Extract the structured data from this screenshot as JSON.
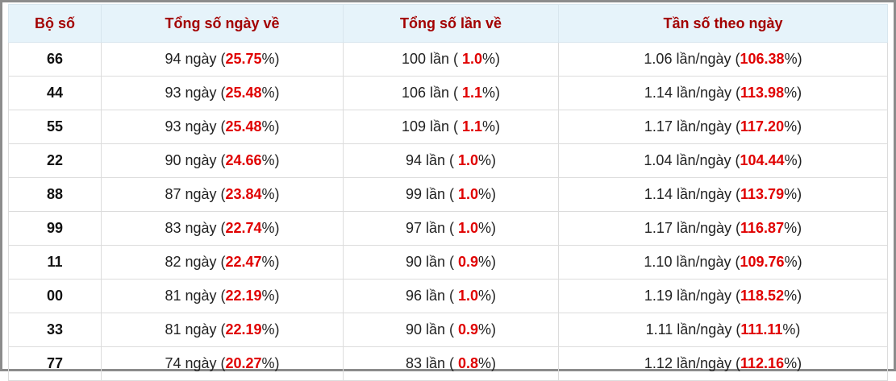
{
  "table": {
    "header": [
      "Bộ số",
      "Tổng số ngày về",
      "Tổng số lần về",
      "Tần số theo ngày"
    ],
    "rows": [
      [
        "66",
        [
          "94 ngày (",
          "25.75",
          "%)"
        ],
        [
          "100 lần ( ",
          "1.0",
          "%)"
        ],
        [
          "1.06 lần/ngày (",
          "106.38",
          "%)"
        ]
      ],
      [
        "44",
        [
          "93 ngày (",
          "25.48",
          "%)"
        ],
        [
          "106 lần ( ",
          "1.1",
          "%)"
        ],
        [
          "1.14 lần/ngày (",
          "113.98",
          "%)"
        ]
      ],
      [
        "55",
        [
          "93 ngày (",
          "25.48",
          "%)"
        ],
        [
          "109 lần ( ",
          "1.1",
          "%)"
        ],
        [
          "1.17 lần/ngày (",
          "117.20",
          "%)"
        ]
      ],
      [
        "22",
        [
          "90 ngày (",
          "24.66",
          "%)"
        ],
        [
          "94 lần ( ",
          "1.0",
          "%)"
        ],
        [
          "1.04 lần/ngày (",
          "104.44",
          "%)"
        ]
      ],
      [
        "88",
        [
          "87 ngày (",
          "23.84",
          "%)"
        ],
        [
          "99 lần ( ",
          "1.0",
          "%)"
        ],
        [
          "1.14 lần/ngày (",
          "113.79",
          "%)"
        ]
      ],
      [
        "99",
        [
          "83 ngày (",
          "22.74",
          "%)"
        ],
        [
          "97 lần ( ",
          "1.0",
          "%)"
        ],
        [
          "1.17 lần/ngày (",
          "116.87",
          "%)"
        ]
      ],
      [
        "11",
        [
          "82 ngày (",
          "22.47",
          "%)"
        ],
        [
          "90 lần ( ",
          "0.9",
          "%)"
        ],
        [
          "1.10 lần/ngày (",
          "109.76",
          "%)"
        ]
      ],
      [
        "00",
        [
          "81 ngày (",
          "22.19",
          "%)"
        ],
        [
          "96 lần ( ",
          "1.0",
          "%)"
        ],
        [
          "1.19 lần/ngày (",
          "118.52",
          "%)"
        ]
      ],
      [
        "33",
        [
          "81 ngày (",
          "22.19",
          "%)"
        ],
        [
          "90 lần ( ",
          "0.9",
          "%)"
        ],
        [
          "1.11 lần/ngày (",
          "111.11",
          "%)"
        ]
      ],
      [
        "77",
        [
          "74 ngày (",
          "20.27",
          "%)"
        ],
        [
          "83 lần ( ",
          "0.8",
          "%)"
        ],
        [
          "1.12 lần/ngày (",
          "112.16",
          "%)"
        ]
      ]
    ]
  }
}
